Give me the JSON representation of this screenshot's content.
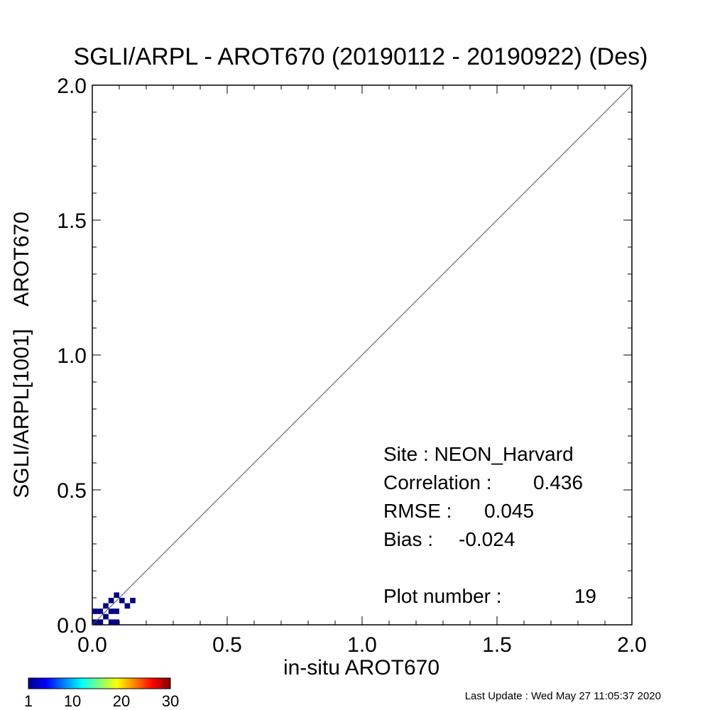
{
  "chart_data": {
    "type": "heatmap",
    "title": "SGLI/ARPL - AROT670 (20190112 - 20190922) (Des)",
    "xlabel": "in-situ AROT670",
    "ylabel": "SGLI/ARPL[1001]    AROT670",
    "xlim": [
      0.0,
      2.0
    ],
    "ylim": [
      0.0,
      2.0
    ],
    "xticks": [
      "0.0",
      "0.5",
      "1.0",
      "1.5",
      "2.0"
    ],
    "yticks": [
      "0.0",
      "0.5",
      "1.0",
      "1.5",
      "2.0"
    ],
    "one_to_one_line": true,
    "grid": false,
    "bin_size": 0.02,
    "cell_color": "#000080",
    "cells": [
      {
        "x": 0.0,
        "y": 0.0
      },
      {
        "x": 0.02,
        "y": 0.0
      },
      {
        "x": 0.06,
        "y": 0.0
      },
      {
        "x": 0.08,
        "y": 0.0
      },
      {
        "x": 0.04,
        "y": 0.02
      },
      {
        "x": 0.0,
        "y": 0.04
      },
      {
        "x": 0.02,
        "y": 0.04
      },
      {
        "x": 0.06,
        "y": 0.04
      },
      {
        "x": 0.08,
        "y": 0.04
      },
      {
        "x": 0.12,
        "y": 0.06
      },
      {
        "x": 0.04,
        "y": 0.06
      },
      {
        "x": 0.06,
        "y": 0.08
      },
      {
        "x": 0.1,
        "y": 0.08
      },
      {
        "x": 0.14,
        "y": 0.08
      },
      {
        "x": 0.08,
        "y": 0.1
      }
    ],
    "stats": {
      "site_label": "Site : NEON_Harvard",
      "correlation_label": "Correlation :",
      "correlation_value": "0.436",
      "rmse_label": "RMSE :",
      "rmse_value": "0.045",
      "bias_label": "Bias :",
      "bias_value": "-0.024",
      "plot_number_label": "Plot number :",
      "plot_number_value": "19"
    },
    "colorbar": {
      "ticks": [
        "1",
        "10",
        "20",
        "30"
      ],
      "range": [
        1,
        30
      ]
    }
  },
  "footer": {
    "last_update": "Last Update : Wed May 27 11:05:37 2020"
  }
}
